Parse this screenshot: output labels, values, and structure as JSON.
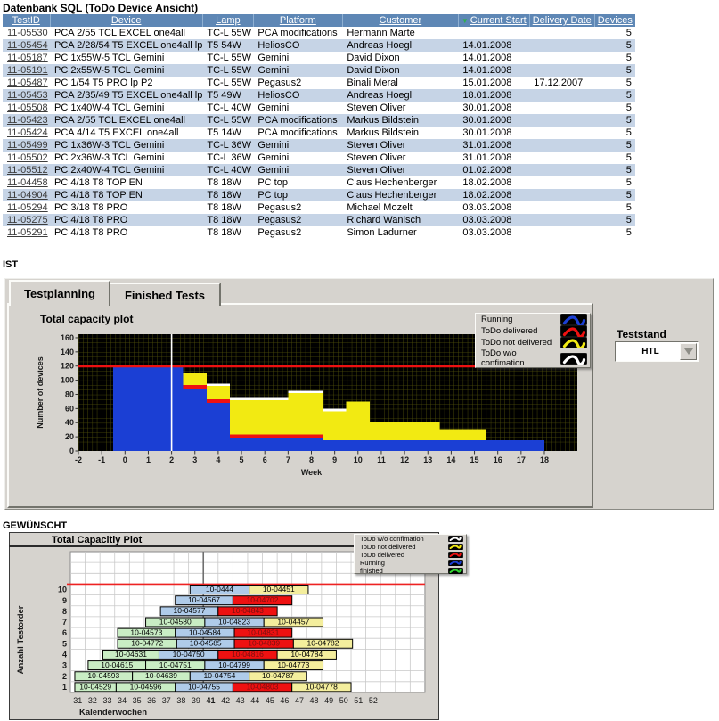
{
  "page": {
    "title": "Datenbank SQL (ToDo Device Ansicht)"
  },
  "sections": {
    "ist_label": "IST",
    "gew_label": "GEWÜNSCHT"
  },
  "table": {
    "columns": [
      "TestID",
      "Device",
      "Lamp",
      "Platform",
      "Customer",
      "Current Start",
      "Delivery Date",
      "Devices"
    ],
    "sort_column": "Current Start",
    "sort_icon": "▼",
    "rows": [
      [
        "11-05530",
        "PCA 2/55 TCL EXCEL one4all",
        "TC-L 55W",
        "PCA modifications",
        "Hermann Marte",
        "",
        "",
        "5"
      ],
      [
        "11-05454",
        "PCA 2/28/54 T5 EXCEL one4all lp",
        "T5 54W",
        "HeliosCO",
        "Andreas Hoegl",
        "14.01.2008",
        "",
        "5"
      ],
      [
        "11-05187",
        "PC 1x55W-5 TCL Gemini",
        "TC-L 55W",
        "Gemini",
        "David Dixon",
        "14.01.2008",
        "",
        "5"
      ],
      [
        "11-05191",
        "PC 2x55W-5 TCL Gemini",
        "TC-L 55W",
        "Gemini",
        "David Dixon",
        "14.01.2008",
        "",
        "5"
      ],
      [
        "11-05487",
        "PC 1/54 T5 PRO lp P2",
        "TC-L 55W",
        "Pegasus2",
        "Binali Meral",
        "15.01.2008",
        "17.12.2007",
        "5"
      ],
      [
        "11-05453",
        "PCA 2/35/49 T5 EXCEL one4all lp",
        "T5 49W",
        "HeliosCO",
        "Andreas Hoegl",
        "18.01.2008",
        "",
        "5"
      ],
      [
        "11-05508",
        "PC 1x40W-4 TCL Gemini",
        "TC-L 40W",
        "Gemini",
        "Steven Oliver",
        "30.01.2008",
        "",
        "5"
      ],
      [
        "11-05423",
        "PCA 2/55 TCL EXCEL one4all",
        "TC-L 55W",
        "PCA modifications",
        "Markus Bildstein",
        "30.01.2008",
        "",
        "5"
      ],
      [
        "11-05424",
        "PCA 4/14 T5 EXCEL one4all",
        "T5 14W",
        "PCA modifications",
        "Markus Bildstein",
        "30.01.2008",
        "",
        "5"
      ],
      [
        "11-05499",
        "PC 1x36W-3 TCL Gemini",
        "TC-L 36W",
        "Gemini",
        "Steven Oliver",
        "31.01.2008",
        "",
        "5"
      ],
      [
        "11-05502",
        "PC 2x36W-3 TCL Gemini",
        "TC-L 36W",
        "Gemini",
        "Steven Oliver",
        "31.01.2008",
        "",
        "5"
      ],
      [
        "11-05512",
        "PC 2x40W-4 TCL Gemini",
        "TC-L 40W",
        "Gemini",
        "Steven Oliver",
        "01.02.2008",
        "",
        "5"
      ],
      [
        "11-04458",
        "PC 4/18 T8 TOP EN",
        "T8 18W",
        "PC top",
        "Claus Hechenberger",
        "18.02.2008",
        "",
        "5"
      ],
      [
        "11-04904",
        "PC 4/18 T8 TOP EN",
        "T8 18W",
        "PC top",
        "Claus Hechenberger",
        "18.02.2008",
        "",
        "5"
      ],
      [
        "11-05294",
        "PC 3/18 T8 PRO",
        "T8 18W",
        "Pegasus2",
        "Michael Mozelt",
        "03.03.2008",
        "",
        "5"
      ],
      [
        "11-05275",
        "PC 4/18 T8 PRO",
        "T8 18W",
        "Pegasus2",
        "Richard Wanisch",
        "03.03.2008",
        "",
        "5"
      ],
      [
        "11-05291",
        "PC 4/18 T8 PRO",
        "T8 18W",
        "Pegasus2",
        "Simon Ladurner",
        "03.03.2008",
        "",
        "5"
      ]
    ],
    "header_bg": "#5e87b5",
    "alt_row_bg": "#c6d4e6",
    "sort_arrow_color": "#2fae4f"
  },
  "tabs": [
    {
      "label": "Testplanning",
      "active": true
    },
    {
      "label": "Finished Tests",
      "active": false
    }
  ],
  "teststand": {
    "label": "Teststand",
    "value": "HTL"
  },
  "chart_data": [
    {
      "type": "area",
      "title": "Total capacity plot",
      "xlabel": "Week",
      "ylabel": "Number of devices",
      "xlim": [
        -2,
        19.4
      ],
      "ylim": [
        0,
        165
      ],
      "x_ticks": [
        -2,
        -1,
        0,
        1,
        2,
        3,
        4,
        5,
        6,
        7,
        8,
        9,
        10,
        11,
        12,
        13,
        14,
        15,
        16,
        17,
        18
      ],
      "y_ticks": [
        0,
        20,
        40,
        60,
        80,
        100,
        120,
        140,
        160
      ],
      "grid": true,
      "plot_bg": "#000000",
      "grid_color": "#53530a",
      "threshold": {
        "y": 120,
        "color": "#ee1111"
      },
      "cursor": {
        "x": 2,
        "color": "#ffffff"
      },
      "legend_position": "top-right",
      "legend": [
        {
          "label": "Running",
          "key": "running",
          "color": "#1b3fd4"
        },
        {
          "label": "ToDo delivered",
          "key": "delivered",
          "color": "#ee1111"
        },
        {
          "label": "ToDo not delivered",
          "key": "not_delivered",
          "color": "#f2ea12"
        },
        {
          "label": "ToDo w/o confimation",
          "key": "wo_confirmation",
          "color": "#ffffff"
        }
      ],
      "series_note": "values are cumulative stack tops per week interval",
      "steps": [
        {
          "from": -0.5,
          "to": 2.5,
          "running": 120,
          "delivered": 120,
          "not_delivered": 120,
          "wo_confirmation": 120
        },
        {
          "from": 2.5,
          "to": 3.5,
          "running": 88,
          "delivered": 93,
          "not_delivered": 110,
          "wo_confirmation": 110
        },
        {
          "from": 3.5,
          "to": 4.5,
          "running": 68,
          "delivered": 73,
          "not_delivered": 92,
          "wo_confirmation": 95
        },
        {
          "from": 4.5,
          "to": 7.0,
          "running": 18,
          "delivered": 23,
          "not_delivered": 72,
          "wo_confirmation": 75
        },
        {
          "from": 7.0,
          "to": 8.5,
          "running": 18,
          "delivered": 23,
          "not_delivered": 82,
          "wo_confirmation": 85
        },
        {
          "from": 8.5,
          "to": 9.5,
          "running": 15,
          "delivered": 15,
          "not_delivered": 56,
          "wo_confirmation": 60
        },
        {
          "from": 9.5,
          "to": 10.5,
          "running": 15,
          "delivered": 15,
          "not_delivered": 70,
          "wo_confirmation": 70
        },
        {
          "from": 10.5,
          "to": 13.5,
          "running": 15,
          "delivered": 15,
          "not_delivered": 40,
          "wo_confirmation": 40
        },
        {
          "from": 13.5,
          "to": 15.5,
          "running": 15,
          "delivered": 15,
          "not_delivered": 31,
          "wo_confirmation": 31
        },
        {
          "from": 15.5,
          "to": 18.0,
          "running": 15,
          "delivered": 15,
          "not_delivered": 15,
          "wo_confirmation": 15
        }
      ]
    },
    {
      "type": "gantt",
      "title": "Total Capacitiy Plot",
      "xlabel": "Kalenderwochen",
      "ylabel": "Anzahl Testorder",
      "x_labels": [
        "31",
        "32",
        "33",
        "34",
        "35",
        "36",
        "37",
        "38",
        "39",
        "41",
        "42",
        "43",
        "44",
        "45",
        "46",
        "47",
        "48",
        "49",
        "50",
        "51",
        "52"
      ],
      "bold_x_label": "41",
      "n_columns": 24,
      "n_rows": 13,
      "row_labels": [
        "1",
        "2",
        "3",
        "4",
        "5",
        "6",
        "7",
        "8",
        "9",
        "10"
      ],
      "grid": true,
      "plot_bg": "#ffffff",
      "grid_color": "#c9c9c9",
      "threshold": {
        "row": 10,
        "color": "#ee2222"
      },
      "cursor": {
        "column": 9,
        "color": "#6f6f6f"
      },
      "legend_position": "top-right",
      "legend": [
        {
          "label": "ToDo w/o confimation",
          "key": "wo_confirmation",
          "color": "#ffffff"
        },
        {
          "label": "ToDo not delivered",
          "key": "not_delivered",
          "color": "#f2ea12"
        },
        {
          "label": "ToDo delivered",
          "key": "delivered",
          "color": "#ee1111"
        },
        {
          "label": "Running",
          "key": "running",
          "color": "#1b3fd4"
        },
        {
          "label": "finished",
          "key": "finished",
          "color": "#2fd42f"
        }
      ],
      "status_fill": {
        "finished": "#c9edc4",
        "running": "#afcbe9",
        "delivered": "#ee1111",
        "not_delivered": "#f4ee9d"
      },
      "status_text": {
        "finished": "#000000",
        "running": "#000000",
        "delivered": "#7b1010",
        "not_delivered": "#000000"
      },
      "bars": [
        {
          "row": 10,
          "label": "10-0444",
          "status": "running",
          "start": 8.1,
          "end": 12.1
        },
        {
          "row": 10,
          "label": "10-04451",
          "status": "not_delivered",
          "start": 12.1,
          "end": 16.1
        },
        {
          "row": 9,
          "label": "10-04567",
          "status": "running",
          "start": 7.1,
          "end": 11.0
        },
        {
          "row": 9,
          "label": "10-04702",
          "status": "delivered",
          "start": 11.0,
          "end": 15.0
        },
        {
          "row": 8,
          "label": "10-04577",
          "status": "running",
          "start": 6.1,
          "end": 10.0
        },
        {
          "row": 8,
          "label": "10-04843",
          "status": "delivered",
          "start": 10.0,
          "end": 14.0
        },
        {
          "row": 7,
          "label": "10-04580",
          "status": "finished",
          "start": 5.1,
          "end": 9.1
        },
        {
          "row": 7,
          "label": "10-04823",
          "status": "running",
          "start": 9.1,
          "end": 13.1
        },
        {
          "row": 7,
          "label": "10-04457",
          "status": "not_delivered",
          "start": 13.1,
          "end": 17.1
        },
        {
          "row": 6,
          "label": "10-04573",
          "status": "finished",
          "start": 3.2,
          "end": 7.1
        },
        {
          "row": 6,
          "label": "10-04584",
          "status": "running",
          "start": 7.1,
          "end": 11.1
        },
        {
          "row": 6,
          "label": "10-04831",
          "status": "delivered",
          "start": 11.1,
          "end": 15.0
        },
        {
          "row": 5,
          "label": "10-04772",
          "status": "finished",
          "start": 3.2,
          "end": 7.2
        },
        {
          "row": 5,
          "label": "10-04585",
          "status": "running",
          "start": 7.2,
          "end": 11.1
        },
        {
          "row": 5,
          "label": "10-04839",
          "status": "delivered",
          "start": 11.1,
          "end": 15.1
        },
        {
          "row": 5,
          "label": "10-04782",
          "status": "not_delivered",
          "start": 15.1,
          "end": 19.1
        },
        {
          "row": 4,
          "label": "10-04631",
          "status": "finished",
          "start": 2.2,
          "end": 6.0
        },
        {
          "row": 4,
          "label": "10-04750",
          "status": "running",
          "start": 6.0,
          "end": 10.0
        },
        {
          "row": 4,
          "label": "10-04816",
          "status": "delivered",
          "start": 10.0,
          "end": 14.0
        },
        {
          "row": 4,
          "label": "10-04784",
          "status": "not_delivered",
          "start": 14.0,
          "end": 18.0
        },
        {
          "row": 3,
          "label": "10-04615",
          "status": "finished",
          "start": 1.2,
          "end": 5.1
        },
        {
          "row": 3,
          "label": "10-04751",
          "status": "finished",
          "start": 5.1,
          "end": 9.1
        },
        {
          "row": 3,
          "label": "10-04799",
          "status": "running",
          "start": 9.1,
          "end": 13.1
        },
        {
          "row": 3,
          "label": "10-04773",
          "status": "not_delivered",
          "start": 13.1,
          "end": 17.1
        },
        {
          "row": 2,
          "label": "10-04593",
          "status": "finished",
          "start": 0.3,
          "end": 4.2
        },
        {
          "row": 2,
          "label": "10-04639",
          "status": "finished",
          "start": 4.2,
          "end": 8.1
        },
        {
          "row": 2,
          "label": "10-04754",
          "status": "running",
          "start": 8.1,
          "end": 12.1
        },
        {
          "row": 2,
          "label": "10-04787",
          "status": "not_delivered",
          "start": 12.1,
          "end": 16.0
        },
        {
          "row": 1,
          "label": "10-04529",
          "status": "finished",
          "start": 0.3,
          "end": 3.1
        },
        {
          "row": 1,
          "label": "10-04596",
          "status": "finished",
          "start": 3.1,
          "end": 7.1
        },
        {
          "row": 1,
          "label": "10-04755",
          "status": "running",
          "start": 7.1,
          "end": 11.0
        },
        {
          "row": 1,
          "label": "10-04803",
          "status": "delivered",
          "start": 11.0,
          "end": 15.0
        },
        {
          "row": 1,
          "label": "10-04778",
          "status": "not_delivered",
          "start": 15.0,
          "end": 19.0
        }
      ]
    }
  ]
}
